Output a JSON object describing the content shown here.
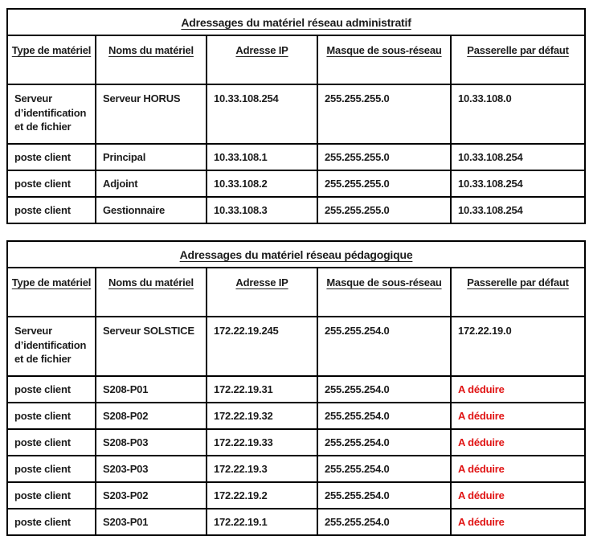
{
  "colors": {
    "background": "#ffffff",
    "border": "#000000",
    "text": "#1c1c1c",
    "deduce_red": "#e01414"
  },
  "tables": [
    {
      "title": "Adressages du matériel réseau administratif",
      "columns": [
        "Type de matériel",
        "Noms du matériel",
        "Adresse IP",
        "Masque de sous-réseau",
        "Passerelle par défaut"
      ],
      "rows": [
        {
          "cells": [
            "Serveur d’identification et de fichier",
            "Serveur HORUS",
            "10.33.108.254",
            "255.255.255.0",
            "10.33.108.0"
          ],
          "red": []
        },
        {
          "cells": [
            "poste client",
            "Principal",
            "10.33.108.1",
            "255.255.255.0",
            "10.33.108.254"
          ],
          "red": []
        },
        {
          "cells": [
            "poste client",
            "Adjoint",
            "10.33.108.2",
            "255.255.255.0",
            "10.33.108.254"
          ],
          "red": []
        },
        {
          "cells": [
            "poste client",
            "Gestionnaire",
            "10.33.108.3",
            "255.255.255.0",
            "10.33.108.254"
          ],
          "red": []
        }
      ]
    },
    {
      "title": "Adressages du matériel réseau pédagogique",
      "columns": [
        "Type de matériel",
        "Noms du matériel",
        "Adresse IP",
        "Masque de sous-réseau",
        "Passerelle par défaut"
      ],
      "rows": [
        {
          "cells": [
            "Serveur d’identification et de fichier",
            "Serveur SOLSTICE",
            "172.22.19.245",
            "255.255.254.0",
            "172.22.19.0"
          ],
          "red": []
        },
        {
          "cells": [
            "poste client",
            "S208-P01",
            "172.22.19.31",
            "255.255.254.0",
            "A déduire"
          ],
          "red": [
            4
          ]
        },
        {
          "cells": [
            "poste client",
            "S208-P02",
            "172.22.19.32",
            "255.255.254.0",
            "A déduire"
          ],
          "red": [
            4
          ]
        },
        {
          "cells": [
            "poste client",
            "S208-P03",
            "172.22.19.33",
            "255.255.254.0",
            "A déduire"
          ],
          "red": [
            4
          ]
        },
        {
          "cells": [
            "poste client",
            "S203-P03",
            "172.22.19.3",
            "255.255.254.0",
            "A déduire"
          ],
          "red": [
            4
          ]
        },
        {
          "cells": [
            "poste client",
            "S203-P02",
            "172.22.19.2",
            "255.255.254.0",
            "A déduire"
          ],
          "red": [
            4
          ]
        },
        {
          "cells": [
            "poste client",
            "S203-P01",
            "172.22.19.1",
            "255.255.254.0",
            "A déduire"
          ],
          "red": [
            4
          ]
        }
      ]
    }
  ]
}
